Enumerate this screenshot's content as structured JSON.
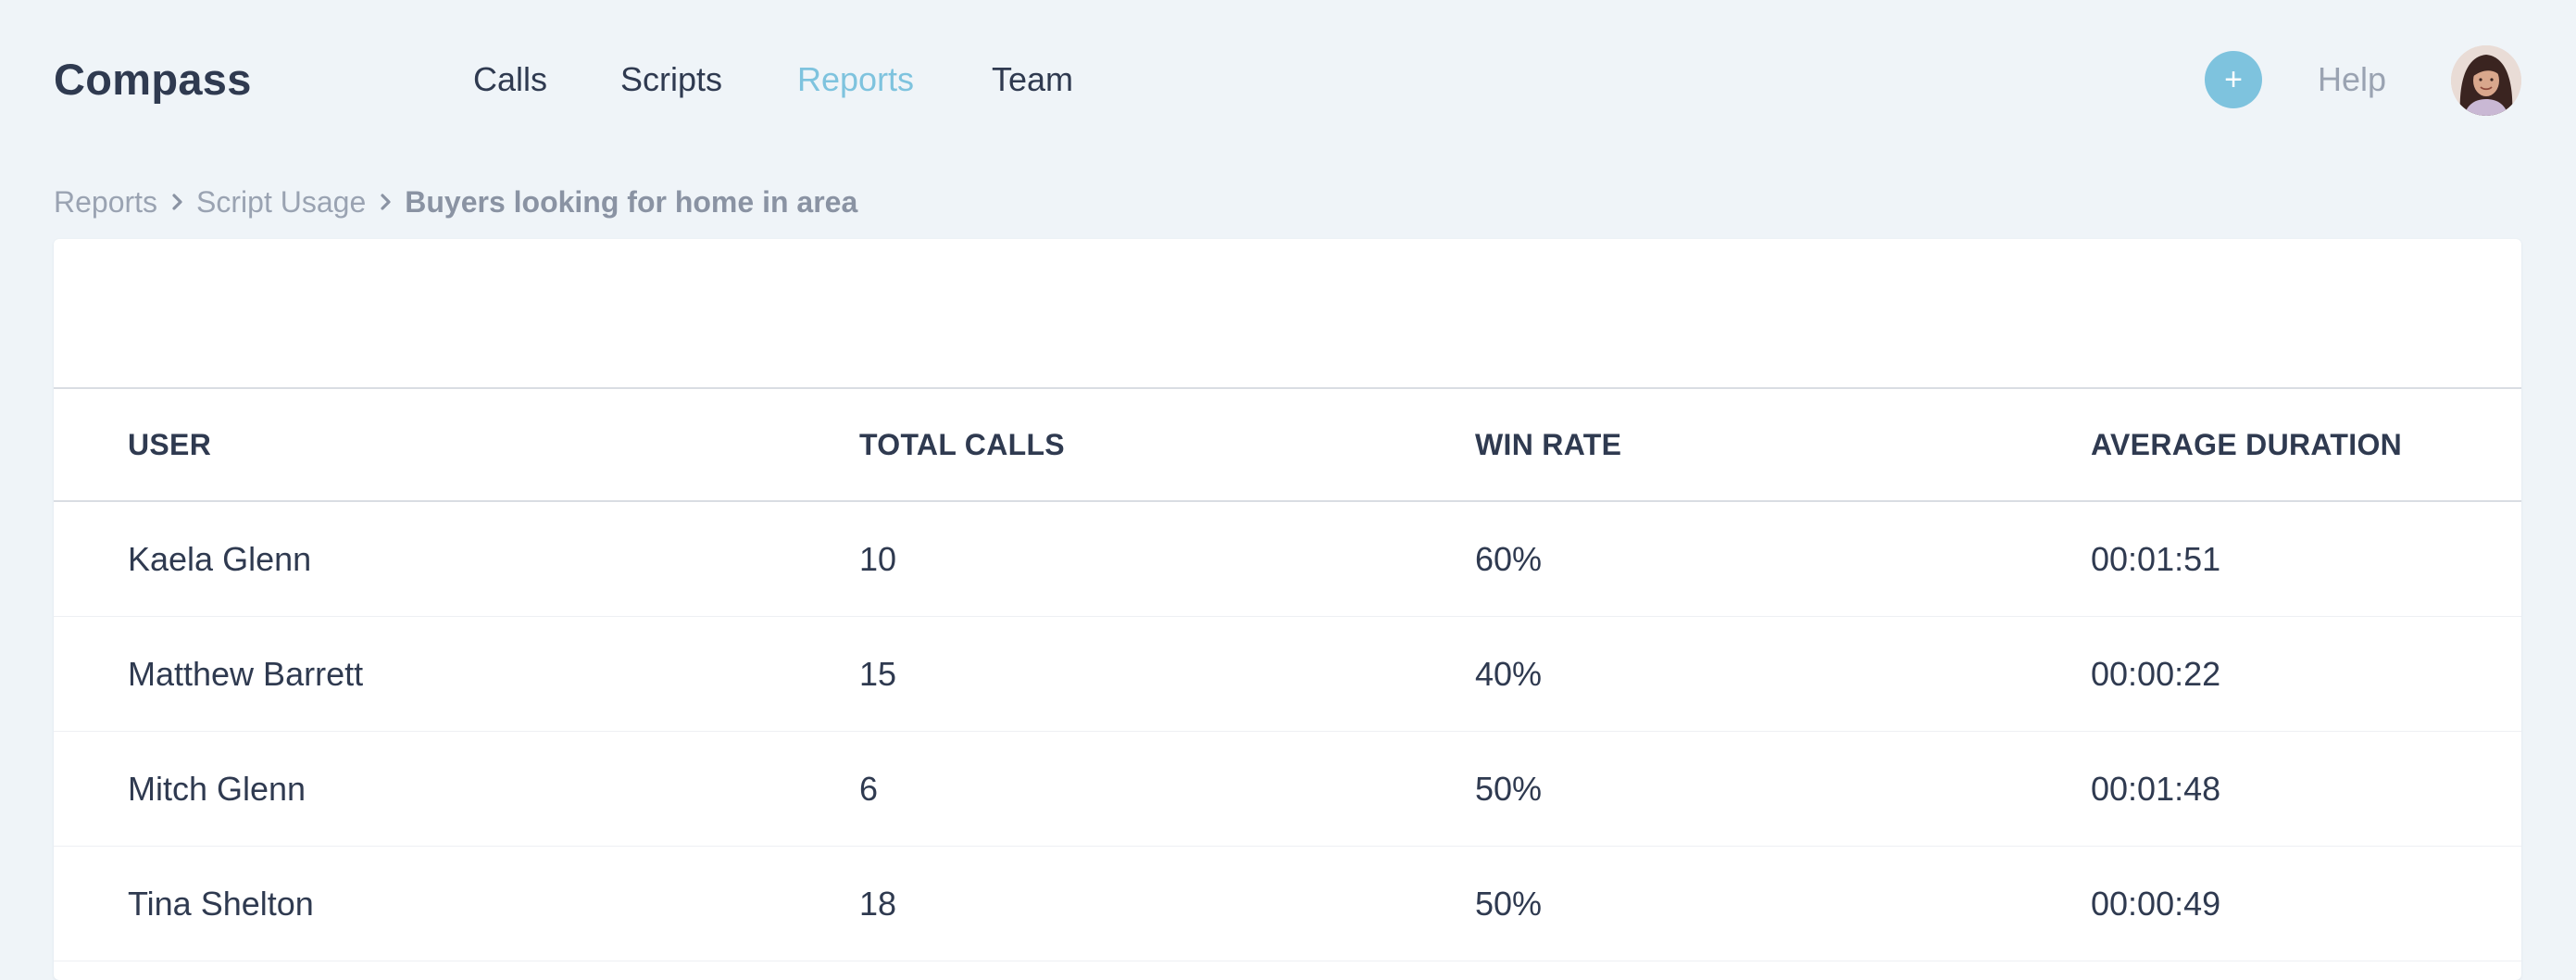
{
  "app": {
    "name": "Compass"
  },
  "nav": {
    "items": [
      {
        "label": "Calls",
        "active": false
      },
      {
        "label": "Scripts",
        "active": false
      },
      {
        "label": "Reports",
        "active": true
      },
      {
        "label": "Team",
        "active": false
      }
    ],
    "add_icon": "plus-icon",
    "help_label": "Help",
    "avatar_icon": "user-avatar"
  },
  "breadcrumb": {
    "items": [
      "Reports",
      "Script Usage",
      "Buyers looking for home in area"
    ],
    "separator_icon": "chevron-right-icon"
  },
  "table": {
    "columns": [
      "USER",
      "TOTAL CALLS",
      "WIN RATE",
      "AVERAGE DURATION"
    ],
    "rows": [
      {
        "user": "Kaela Glenn",
        "total_calls": "10",
        "win_rate": "60%",
        "avg_duration": "00:01:51"
      },
      {
        "user": "Matthew Barrett",
        "total_calls": "15",
        "win_rate": "40%",
        "avg_duration": "00:00:22"
      },
      {
        "user": "Mitch Glenn",
        "total_calls": "6",
        "win_rate": "50%",
        "avg_duration": "00:01:48"
      },
      {
        "user": "Tina Shelton",
        "total_calls": "18",
        "win_rate": "50%",
        "avg_duration": "00:00:49"
      }
    ]
  },
  "colors": {
    "background": "#eff4f8",
    "accent": "#7ec3de",
    "text": "#2f3a50",
    "muted": "#9aa3b2"
  }
}
